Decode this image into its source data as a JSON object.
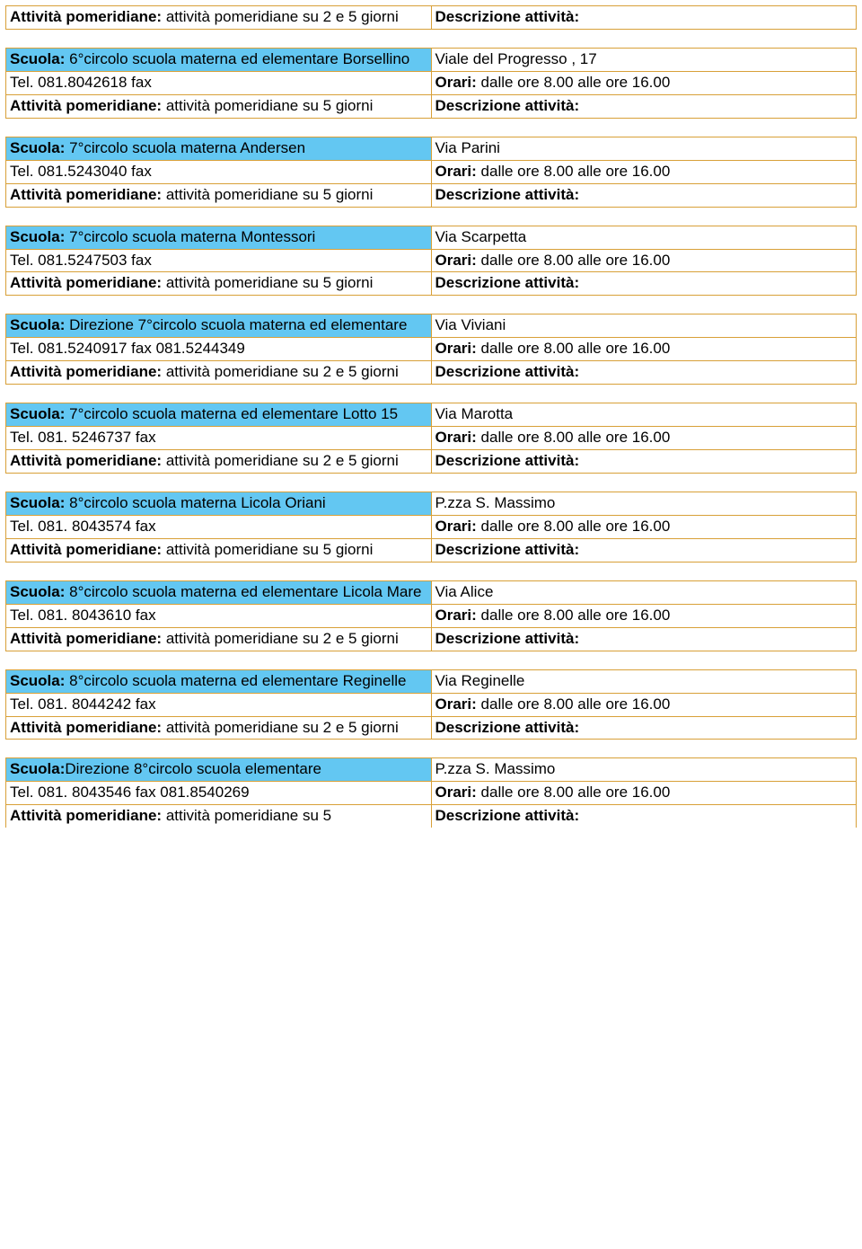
{
  "labels": {
    "scuola": "Scuola:",
    "attivita": "Attività pomeridiane:",
    "descrizione": "Descrizione attività:",
    "orari": "Orari:"
  },
  "schools": [
    {
      "partial_top": true,
      "att_val": "attività pomeridiane su 2 e 5 giorni",
      "desc_val": ""
    },
    {
      "name": "6°circolo  scuola materna ed elementare Borsellino",
      "address": "Viale del Progresso , 17",
      "tel": "Tel. 081.8042618  fax",
      "orari": "dalle ore 8.00 alle ore 16.00",
      "att_val": "attività pomeridiane su   5 giorni",
      "desc_val": ""
    },
    {
      "name": "7°circolo scuola materna Andersen",
      "address": "Via  Parini",
      "tel": "Tel. 081.5243040  fax",
      "orari": "dalle ore 8.00 alle ore 16.00",
      "att_val": "attività pomeridiane su  5 giorni",
      "desc_val": ""
    },
    {
      "name": "7°circolo scuola materna Montessori",
      "address": "Via  Scarpetta",
      "tel": "Tel. 081.5247503  fax",
      "orari": "dalle ore 8.00 alle ore 16.00",
      "att_val": "attività pomeridiane su  5 giorni",
      "desc_val": ""
    },
    {
      "name": "Direzione 7°circolo scuola materna ed elementare",
      "address": "Via  Viviani",
      "tel": "Tel. 081.5240917  fax 081.5244349",
      "orari": "dalle ore 8.00 alle ore 16.00",
      "att_val": "attività pomeridiane su 2 e 5 giorni",
      "desc_val": ""
    },
    {
      "name": "7°circolo scuola materna ed elementare Lotto 15",
      "address": "Via  Marotta",
      "tel": "Tel. 081. 5246737 fax",
      "orari": "dalle ore 8.00 alle ore 16.00",
      "att_val": "attività pomeridiane su 2 e 5 giorni",
      "desc_val": ""
    },
    {
      "name": "8°circolo scuola materna Licola Oriani",
      "address": " P.zza S. Massimo",
      "tel": "Tel. 081. 8043574 fax",
      "orari": "dalle ore 8.00 alle ore 16.00",
      "att_val": "attività pomeridiane su  5 giorni",
      "desc_val": ""
    },
    {
      "name": "8°circolo scuola materna  ed elementare Licola Mare",
      "address": "  Via Alice",
      "tel": "Tel. 081. 8043610 fax",
      "orari": "dalle ore 8.00 alle ore 16.00",
      "att_val": "attività pomeridiane su 2 e 5 giorni",
      "desc_val": ""
    },
    {
      "name": "8°circolo scuola materna ed elementare Reginelle",
      "address": "  Via Reginelle",
      "tel": "Tel. 081. 8044242 fax",
      "orari": "dalle ore 8.00 alle ore 16.00",
      "att_val": "attività pomeridiane su 2 e 5 giorni",
      "desc_val": ""
    },
    {
      "label_variant": "Scuola:",
      "name_no_space": true,
      "name": "Direzione 8°circolo scuola elementare",
      "address": " P.zza S. Massimo",
      "tel": "Tel. 081. 8043546 fax 081.8540269",
      "orari": "dalle ore 8.00 alle ore 16.00",
      "att_val": "attività pomeridiane su  5",
      "desc_val": "",
      "partial_bottom": true
    }
  ]
}
